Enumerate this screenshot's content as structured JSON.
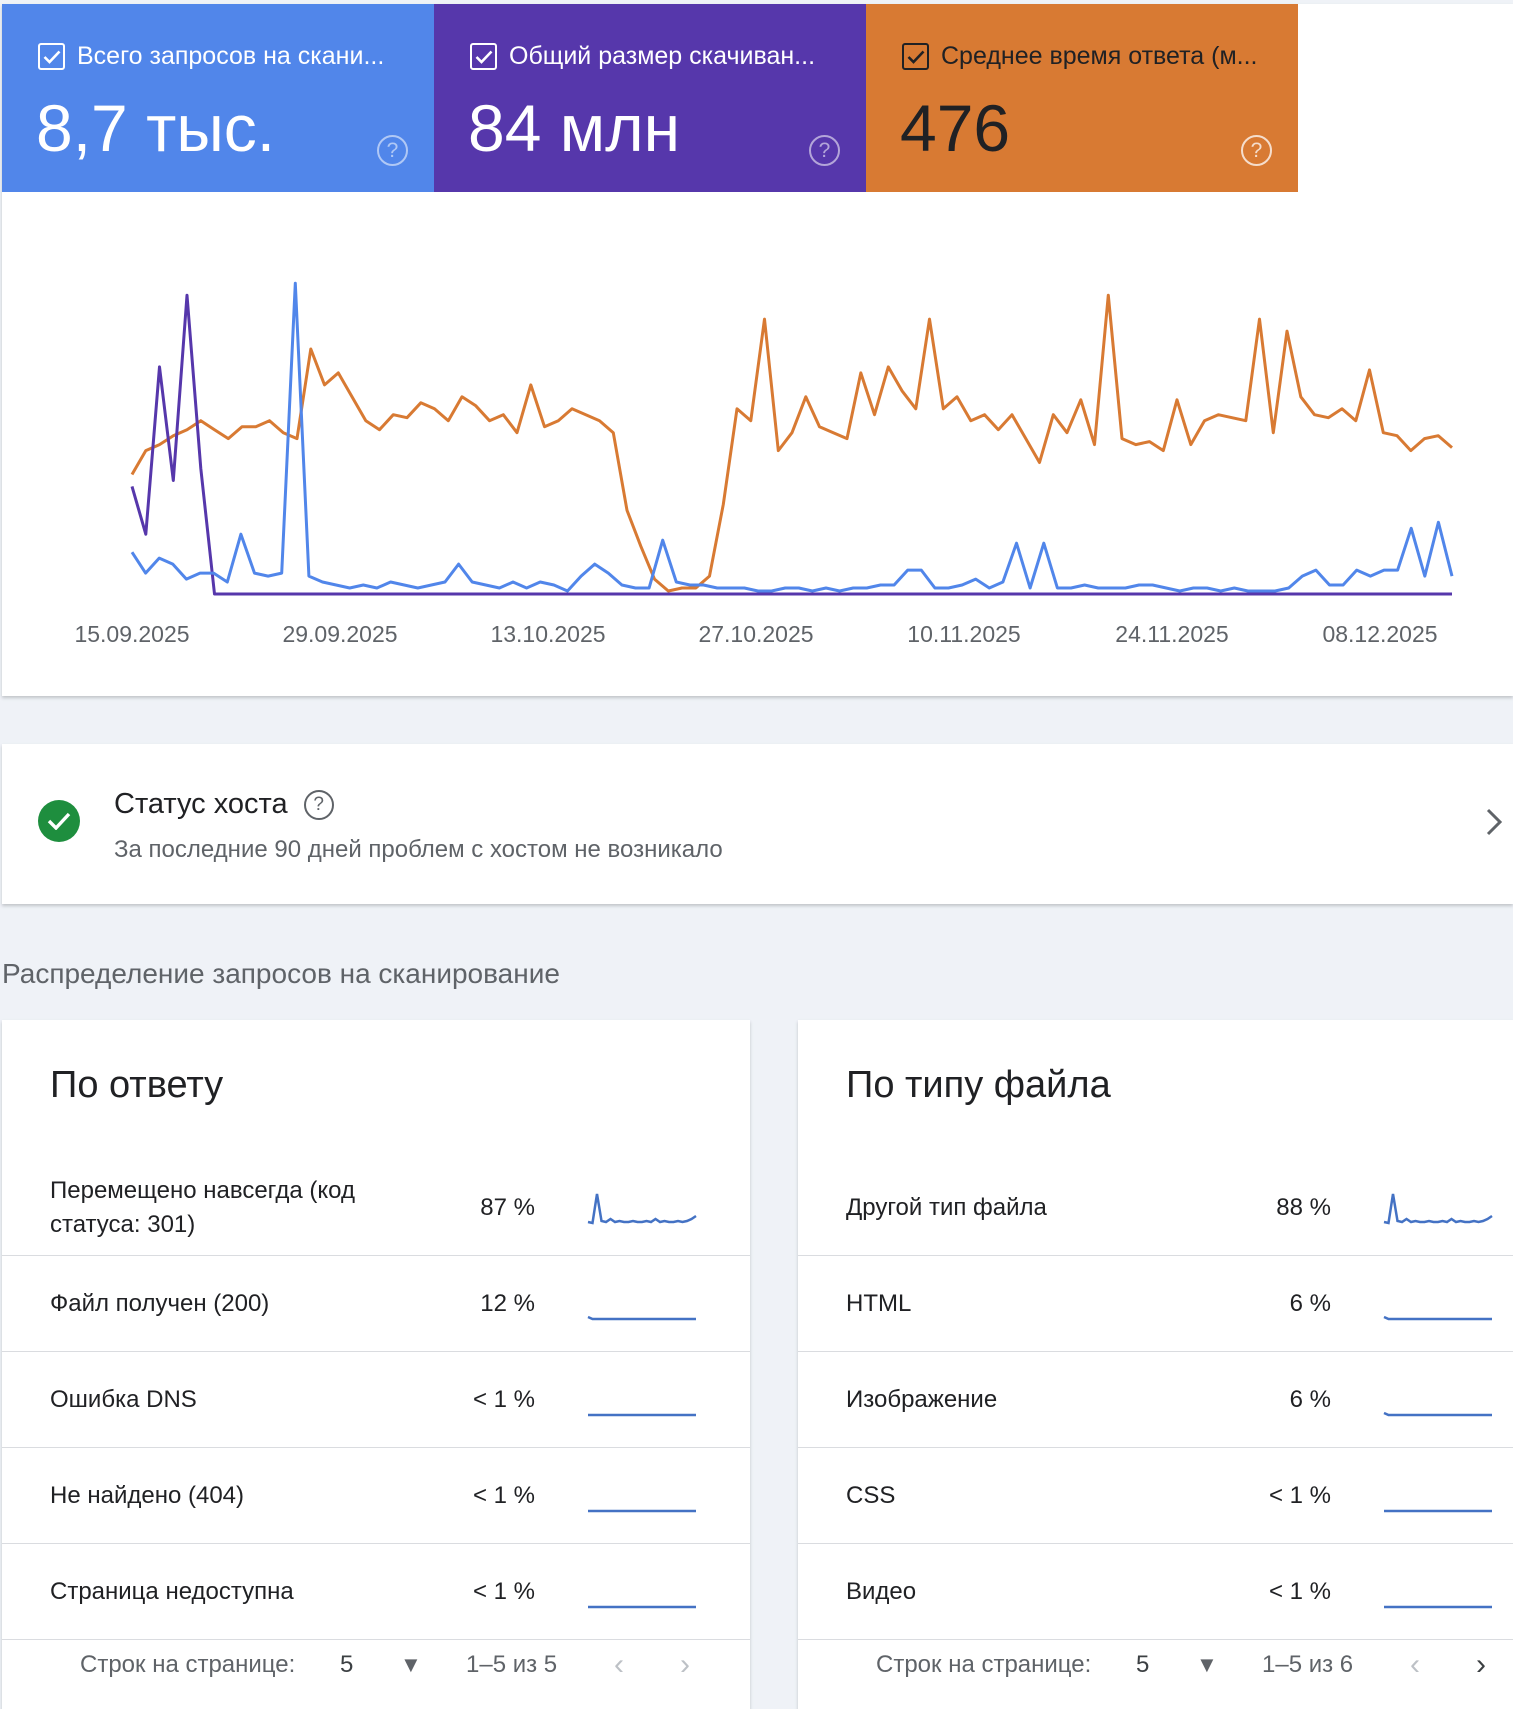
{
  "metrics": [
    {
      "title": "Всего запросов на скани...",
      "value": "8,7 тыс.",
      "color": "#5186ea"
    },
    {
      "title": "Общий размер скачиван...",
      "value": "84 млн",
      "color": "#5637ab"
    },
    {
      "title": "Среднее время ответа (м...",
      "value": "476",
      "color": "#d87a33"
    }
  ],
  "chart_data": {
    "type": "line",
    "x_ticks": [
      "15.09.2025",
      "29.09.2025",
      "13.10.2025",
      "27.10.2025",
      "10.11.2025",
      "24.11.2025",
      "08.12.2025"
    ],
    "y_range": [
      0,
      100
    ],
    "grid": false,
    "legend": "none",
    "series": [
      {
        "color": "#d87a33",
        "values": [
          40,
          48,
          50,
          53,
          55,
          58,
          55,
          52,
          56,
          56,
          58,
          54,
          52,
          82,
          70,
          74,
          66,
          58,
          55,
          60,
          59,
          64,
          62,
          58,
          66,
          63,
          58,
          60,
          54,
          70,
          56,
          58,
          62,
          60,
          58,
          54,
          28,
          16,
          5,
          1,
          2,
          2,
          6,
          30,
          62,
          58,
          92,
          48,
          54,
          66,
          56,
          54,
          52,
          74,
          60,
          76,
          68,
          62,
          92,
          62,
          66,
          58,
          60,
          55,
          60,
          52,
          44,
          60,
          54,
          65,
          50,
          100,
          52,
          50,
          51,
          48,
          65,
          50,
          58,
          60,
          59,
          58,
          92,
          54,
          88,
          66,
          60,
          59,
          62,
          58,
          75,
          54,
          53,
          48,
          52,
          53,
          49
        ]
      },
      {
        "color": "#5637ab",
        "values": [
          36,
          20,
          76,
          38,
          100,
          42,
          0,
          0,
          0,
          0,
          0,
          0,
          0,
          0,
          0,
          0,
          0,
          0,
          0,
          0,
          0,
          0,
          0,
          0,
          0,
          0,
          0,
          0,
          0,
          0,
          0,
          0,
          0,
          0,
          0,
          0,
          0,
          0,
          0,
          0,
          0,
          0,
          0,
          0,
          0,
          0,
          0,
          0,
          0,
          0,
          0,
          0,
          0,
          0,
          0,
          0,
          0,
          0,
          0,
          0,
          0,
          0,
          0,
          0,
          0,
          0,
          0,
          0,
          0,
          0,
          0,
          0,
          0,
          0,
          0,
          0,
          0,
          0,
          0,
          0,
          0,
          0,
          0,
          0,
          0,
          0,
          0,
          0,
          0,
          0,
          0,
          0,
          0,
          0,
          0,
          0,
          0
        ]
      },
      {
        "color": "#5186ea",
        "values": [
          14,
          7,
          12,
          10,
          5,
          7,
          7,
          4,
          20,
          7,
          6,
          7,
          104,
          6,
          4,
          3,
          2,
          3,
          2,
          4,
          3,
          2,
          3,
          4,
          10,
          4,
          3,
          2,
          4,
          2,
          4,
          3,
          1,
          6,
          10,
          7,
          3,
          2,
          2,
          18,
          4,
          3,
          3,
          2,
          2,
          2,
          1,
          1,
          2,
          2,
          1,
          2,
          1,
          2,
          2,
          3,
          3,
          8,
          8,
          2,
          2,
          3,
          5,
          2,
          4,
          17,
          2,
          17,
          2,
          2,
          3,
          2,
          2,
          2,
          3,
          3,
          2,
          1,
          2,
          2,
          1,
          2,
          1,
          1,
          1,
          2,
          6,
          8,
          3,
          3,
          8,
          6,
          8,
          8,
          22,
          6,
          24,
          6
        ]
      }
    ]
  },
  "host": {
    "title": "Статус хоста",
    "subtitle": "За последние 90 дней проблем с хостом не возникало"
  },
  "distribution_title": "Распределение запросов на сканирование",
  "by_response": {
    "title": "По ответу",
    "rows": [
      {
        "label": "Перемещено навсегда (код статуса: 301)",
        "pct": "87 %",
        "spark": [
          2,
          1,
          30,
          3,
          2,
          5,
          2,
          3,
          2,
          2,
          3,
          2,
          2,
          3,
          2,
          5,
          2,
          3,
          2,
          2,
          3,
          2,
          3,
          5,
          8
        ]
      },
      {
        "label": "Файл получен (200)",
        "pct": "12 %",
        "spark": [
          3,
          1,
          1,
          1,
          1,
          1,
          1,
          1,
          1,
          1,
          1,
          1,
          1,
          1,
          1,
          1,
          1,
          1,
          1,
          1,
          1,
          1,
          1,
          1,
          1
        ]
      },
      {
        "label": "Ошибка DNS",
        "pct": "< 1 %",
        "spark": [
          1,
          1,
          1,
          1,
          1,
          1,
          1,
          1,
          1,
          1,
          1,
          1,
          1,
          1,
          1,
          1,
          1,
          1,
          1,
          1,
          1,
          1,
          1,
          1,
          1
        ]
      },
      {
        "label": "Не найдено (404)",
        "pct": "< 1 %",
        "spark": [
          1,
          1,
          1,
          1,
          1,
          1,
          1,
          1,
          1,
          1,
          1,
          1,
          1,
          1,
          1,
          1,
          1,
          1,
          1,
          1,
          1,
          1,
          1,
          1,
          1
        ]
      },
      {
        "label": "Страница недоступна",
        "pct": "< 1 %",
        "spark": [
          1,
          1,
          1,
          1,
          1,
          1,
          1,
          1,
          1,
          1,
          1,
          1,
          1,
          1,
          1,
          1,
          1,
          1,
          1,
          1,
          1,
          1,
          1,
          1,
          1
        ]
      }
    ],
    "pager": {
      "rows_label": "Строк на странице:",
      "rows_value": "5",
      "range": "1–5 из 5"
    }
  },
  "by_file_type": {
    "title": "По типу файла",
    "rows": [
      {
        "label": "Другой тип файла",
        "pct": "88 %",
        "spark": [
          2,
          1,
          30,
          3,
          2,
          5,
          2,
          3,
          2,
          2,
          3,
          2,
          2,
          3,
          2,
          5,
          2,
          3,
          2,
          2,
          3,
          2,
          3,
          5,
          8
        ]
      },
      {
        "label": "HTML",
        "pct": "6 %",
        "spark": [
          3,
          1,
          1,
          1,
          1,
          1,
          1,
          1,
          1,
          1,
          1,
          1,
          1,
          1,
          1,
          1,
          1,
          1,
          1,
          1,
          1,
          1,
          1,
          1,
          1
        ]
      },
      {
        "label": "Изображение",
        "pct": "6 %",
        "spark": [
          3,
          1,
          1,
          1,
          1,
          1,
          1,
          1,
          1,
          1,
          1,
          1,
          1,
          1,
          1,
          1,
          1,
          1,
          1,
          1,
          1,
          1,
          1,
          1,
          1
        ]
      },
      {
        "label": "CSS",
        "pct": "< 1 %",
        "spark": [
          1,
          1,
          1,
          1,
          1,
          1,
          1,
          1,
          1,
          1,
          1,
          1,
          1,
          1,
          1,
          1,
          1,
          1,
          1,
          1,
          1,
          1,
          1,
          1,
          1
        ]
      },
      {
        "label": "Видео",
        "pct": "< 1 %",
        "spark": [
          1,
          1,
          1,
          1,
          1,
          1,
          1,
          1,
          1,
          1,
          1,
          1,
          1,
          1,
          1,
          1,
          1,
          1,
          1,
          1,
          1,
          1,
          1,
          1,
          1
        ]
      }
    ],
    "pager": {
      "rows_label": "Строк на странице:",
      "rows_value": "5",
      "range": "1–5 из 6"
    }
  }
}
